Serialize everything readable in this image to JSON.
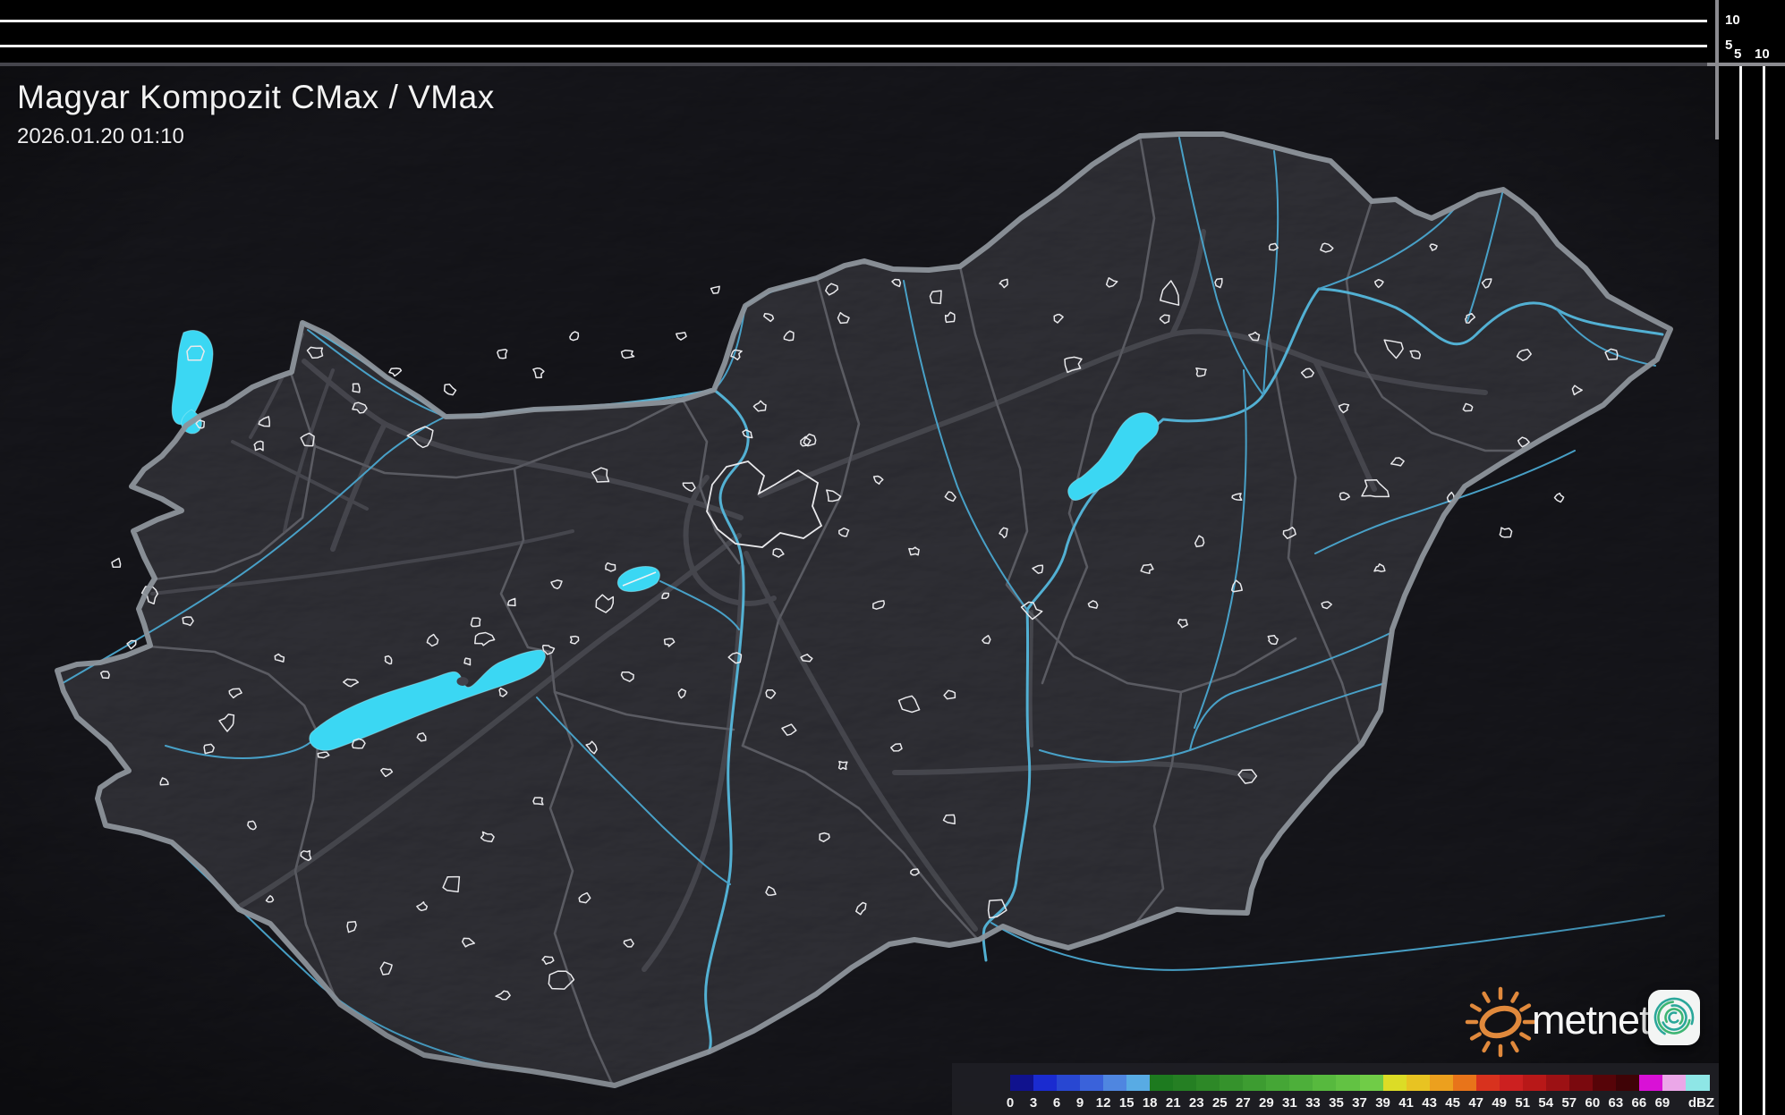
{
  "header": {
    "title": "Magyar Kompozit CMax / VMax",
    "timestamp": "2026.01.20 01:10"
  },
  "branding": {
    "logo_text": "metnet"
  },
  "scale": {
    "unit_label": "dBZ",
    "tick_labels": [
      "0",
      "3",
      "6",
      "9",
      "12",
      "15",
      "18",
      "21",
      "23",
      "25",
      "27",
      "29",
      "31",
      "33",
      "35",
      "37",
      "39",
      "41",
      "43",
      "45",
      "47",
      "49",
      "51",
      "54",
      "57",
      "60",
      "63",
      "66",
      "69"
    ],
    "segment_colors": [
      "#10128e",
      "#1a2bd0",
      "#2847d2",
      "#3a62da",
      "#4f86e0",
      "#58abe4",
      "#1d7a1f",
      "#257f23",
      "#2d8827",
      "#35922c",
      "#3d9c31",
      "#45a636",
      "#4daf3a",
      "#57b93e",
      "#62c243",
      "#70cc47",
      "#dcdc26",
      "#e8c322",
      "#eca01e",
      "#e8741a",
      "#d8321e",
      "#cc2020",
      "#b81818",
      "#9c1114",
      "#7a090e",
      "#560408",
      "#3f0306",
      "#d911d6",
      "#eba7e8",
      "#8ee6e6"
    ]
  },
  "ruler": {
    "vertical_labels": [
      "10",
      "5"
    ],
    "horizontal_labels": [
      "5",
      "10"
    ]
  },
  "map": {
    "colors": {
      "land": "#41414a",
      "outside_dim": "rgba(10,10,14,0.42)",
      "country_border": "#8d939b",
      "county_border": "#63646b",
      "road": "#55565e",
      "river": "#4aa7cf",
      "big_river": "#55b8dc",
      "lake": "#3bd7f3",
      "city_outline": "#e9e9ec",
      "sun_orange": "#e0893c",
      "icon_teal": "#2aa79a",
      "icon_green": "#3db573"
    }
  }
}
